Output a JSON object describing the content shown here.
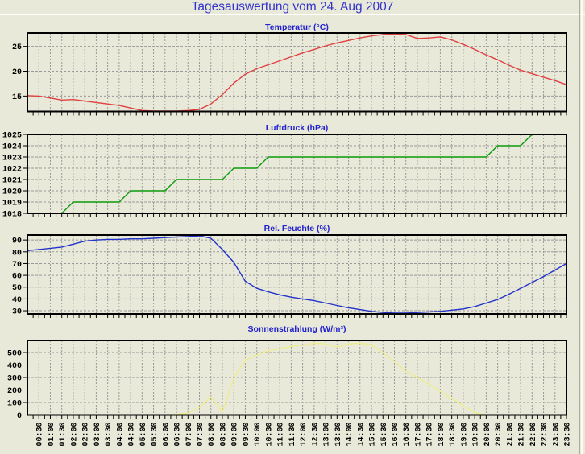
{
  "page": {
    "title": "Tagesauswertung vom 24. Aug 2007",
    "title_color": "#3333CC",
    "background": "#E9E9DA",
    "grid_color": "#999999",
    "axis_color": "#000000",
    "chart_title_color": "#2222CE"
  },
  "x_axis": {
    "tick_labels": [
      "00:30",
      "01:00",
      "01:30",
      "02:00",
      "02:30",
      "03:00",
      "03:30",
      "04:00",
      "04:30",
      "05:00",
      "05:30",
      "06:00",
      "06:30",
      "07:00",
      "07:30",
      "08:00",
      "08:30",
      "09:00",
      "09:30",
      "10:00",
      "10:30",
      "11:00",
      "11:30",
      "12:00",
      "12:30",
      "13:00",
      "13:30",
      "14:00",
      "14:30",
      "15:00",
      "15:30",
      "16:00",
      "16:30",
      "17:00",
      "17:30",
      "18:00",
      "18:30",
      "19:00",
      "19:30",
      "20:00",
      "20:30",
      "21:00",
      "21:30",
      "22:00",
      "22:30",
      "23:00",
      "23:30"
    ]
  },
  "chart_data": [
    {
      "type": "line",
      "id": "temperatur",
      "title": "Temperatur (°C)",
      "line_color": "#E04040",
      "yticks": [
        15,
        20,
        25
      ],
      "ylim": [
        11.9,
        27.7
      ],
      "x_start": "00:00",
      "x_step_minutes": 30,
      "values": [
        15.1,
        15.0,
        14.6,
        14.2,
        14.3,
        14.0,
        13.7,
        13.4,
        13.1,
        12.6,
        12.1,
        12.0,
        12.0,
        12.0,
        12.1,
        12.3,
        13.4,
        15.3,
        17.6,
        19.4,
        20.5,
        21.3,
        22.1,
        22.9,
        23.7,
        24.4,
        25.1,
        25.7,
        26.2,
        26.7,
        27.1,
        27.4,
        27.5,
        27.4,
        26.6,
        26.7,
        26.9,
        26.3,
        25.4,
        24.4,
        23.3,
        22.3,
        21.2,
        20.2,
        19.5,
        18.8,
        18.1,
        17.3
      ]
    },
    {
      "type": "line",
      "id": "luftdruck",
      "title": "Luftdruck (hPa)",
      "line_color": "#0B9B0B",
      "yticks": [
        1018,
        1019,
        1020,
        1021,
        1022,
        1023,
        1024,
        1025
      ],
      "ylim": [
        1018,
        1025
      ],
      "x_start": "00:00",
      "x_step_minutes": 30,
      "values": [
        1018,
        1018,
        1018,
        1018,
        1019,
        1019,
        1019,
        1019,
        1019,
        1020,
        1020,
        1020,
        1020,
        1021,
        1021,
        1021,
        1021,
        1021,
        1022,
        1022,
        1022,
        1023,
        1023,
        1023,
        1023,
        1023,
        1023,
        1023,
        1023,
        1023,
        1023,
        1023,
        1023,
        1023,
        1023,
        1023,
        1023,
        1023,
        1023,
        1023,
        1023,
        1024,
        1024,
        1024,
        1025,
        1025,
        1025,
        1025
      ]
    },
    {
      "type": "line",
      "id": "rel-feuchte",
      "title": "Rel. Feuchte (%)",
      "line_color": "#2233CB",
      "yticks": [
        30,
        40,
        50,
        60,
        70,
        80,
        90
      ],
      "ylim": [
        27.3,
        94.2
      ],
      "x_start": "00:00",
      "x_step_minutes": 30,
      "values": [
        81,
        82,
        83,
        84,
        86.5,
        89,
        90,
        90.5,
        90.5,
        91,
        91,
        91.5,
        92,
        92.5,
        93,
        93.5,
        91.5,
        82,
        71,
        55,
        49,
        46,
        43.5,
        41.5,
        40,
        38.5,
        36.5,
        34.5,
        32.5,
        31,
        29.5,
        28.5,
        28,
        28,
        28.5,
        29,
        29.5,
        30.5,
        31.5,
        33.5,
        36.5,
        39.5,
        44,
        49,
        54,
        59,
        64.5,
        70
      ]
    },
    {
      "type": "line",
      "id": "sonnenstrahlung",
      "title": "Sonnenstrahlung (W/m²)",
      "line_color": "#EDED8E",
      "yticks": [
        0,
        100,
        200,
        300,
        400,
        500
      ],
      "ylim": [
        0,
        597
      ],
      "x_start": "00:00",
      "x_step_minutes": 30,
      "values": [
        0,
        0,
        0,
        0,
        0,
        0,
        0,
        0,
        0,
        0,
        0,
        0,
        0,
        5,
        15,
        60,
        145,
        25,
        300,
        440,
        480,
        515,
        530,
        550,
        560,
        575,
        570,
        545,
        570,
        575,
        565,
        500,
        430,
        350,
        300,
        250,
        190,
        130,
        75,
        20,
        0,
        0,
        0,
        0,
        0,
        0,
        0,
        0
      ]
    }
  ]
}
